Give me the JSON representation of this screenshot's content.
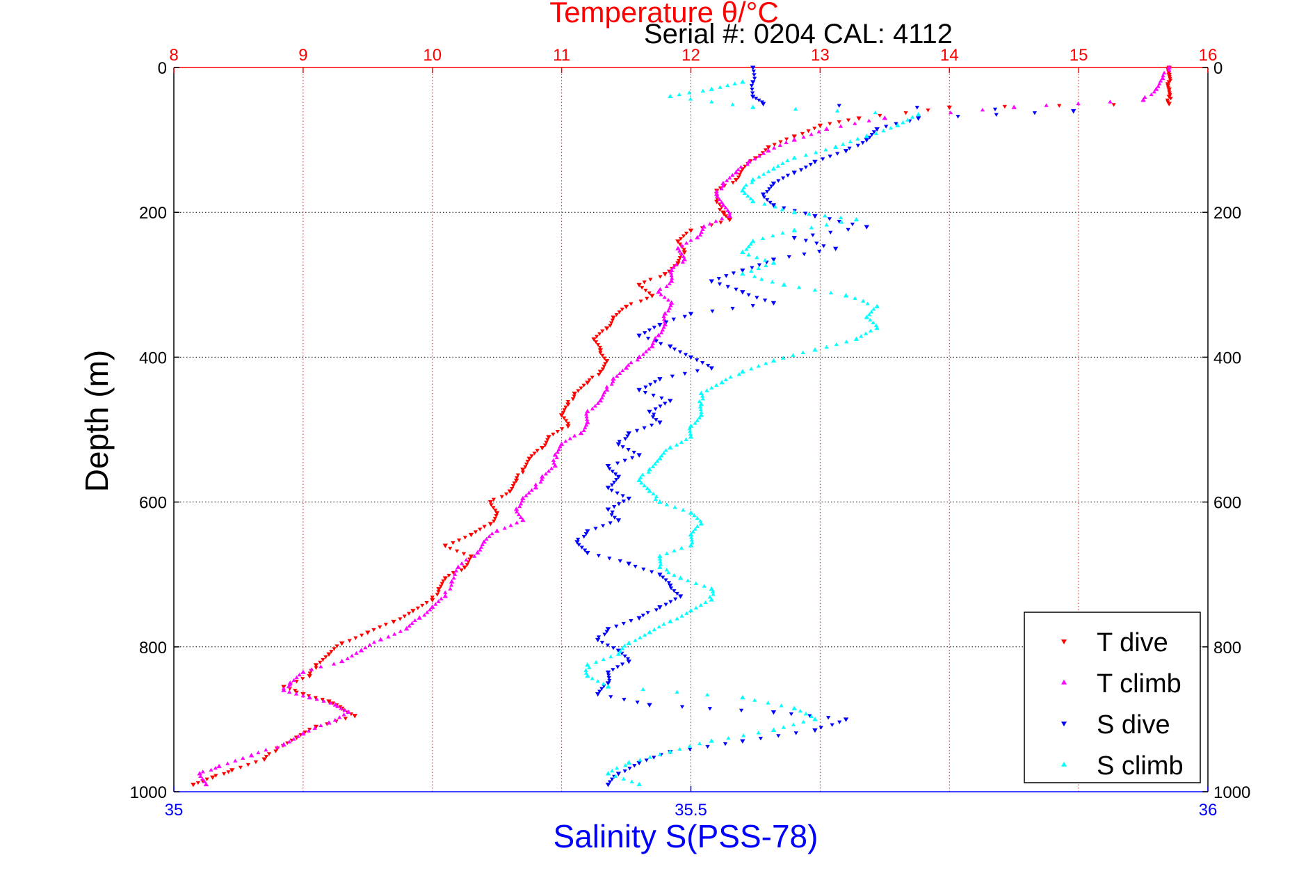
{
  "chart_data": {
    "type": "scatter",
    "title": "Temperature θ/°C",
    "subtitle": "Serial #: 0204  CAL: 4112",
    "ylabel": "Depth (m)",
    "xlabel": "Salinity S(PSS-78)",
    "ylim": [
      1000,
      0
    ],
    "y_ticks": [
      0,
      200,
      400,
      600,
      800,
      1000
    ],
    "x_top": {
      "label": "Temperature θ/°C",
      "range": [
        8,
        16
      ],
      "ticks": [
        "8",
        "9",
        "10",
        "11",
        "12",
        "13",
        "14",
        "15",
        "16"
      ],
      "color": "#ff0000"
    },
    "x_bottom": {
      "label": "Salinity S(PSS-78)",
      "range": [
        35,
        36
      ],
      "ticks": [
        "35",
        "35.5",
        "36"
      ],
      "color": "#0000ff"
    },
    "grid": true,
    "legend_position": "bottom-right",
    "series": [
      {
        "name": "T dive",
        "axis": "temperature",
        "color": "#ff0000",
        "marker": "triangle-down",
        "points": [
          [
            15.7,
            0
          ],
          [
            15.7,
            10
          ],
          [
            15.7,
            20
          ],
          [
            15.7,
            30
          ],
          [
            15.7,
            40
          ],
          [
            15.7,
            50
          ],
          [
            14.0,
            55
          ],
          [
            13.3,
            70
          ],
          [
            13.0,
            80
          ],
          [
            12.8,
            95
          ],
          [
            12.6,
            110
          ],
          [
            12.5,
            125
          ],
          [
            12.4,
            140
          ],
          [
            12.35,
            155
          ],
          [
            12.2,
            170
          ],
          [
            12.2,
            185
          ],
          [
            12.25,
            200
          ],
          [
            12.3,
            210
          ],
          [
            12.0,
            225
          ],
          [
            11.9,
            240
          ],
          [
            11.95,
            255
          ],
          [
            11.9,
            270
          ],
          [
            11.8,
            285
          ],
          [
            11.6,
            300
          ],
          [
            11.7,
            315
          ],
          [
            11.5,
            330
          ],
          [
            11.4,
            345
          ],
          [
            11.35,
            360
          ],
          [
            11.25,
            375
          ],
          [
            11.3,
            390
          ],
          [
            11.35,
            405
          ],
          [
            11.3,
            420
          ],
          [
            11.2,
            435
          ],
          [
            11.1,
            450
          ],
          [
            11.05,
            465
          ],
          [
            11.0,
            480
          ],
          [
            11.05,
            495
          ],
          [
            10.9,
            510
          ],
          [
            10.85,
            525
          ],
          [
            10.75,
            540
          ],
          [
            10.7,
            555
          ],
          [
            10.65,
            570
          ],
          [
            10.6,
            585
          ],
          [
            10.45,
            600
          ],
          [
            10.5,
            615
          ],
          [
            10.45,
            630
          ],
          [
            10.3,
            645
          ],
          [
            10.1,
            660
          ],
          [
            10.3,
            675
          ],
          [
            10.25,
            690
          ],
          [
            10.1,
            705
          ],
          [
            10.05,
            720
          ],
          [
            10.0,
            735
          ],
          [
            9.85,
            750
          ],
          [
            9.7,
            765
          ],
          [
            9.5,
            780
          ],
          [
            9.3,
            795
          ],
          [
            9.2,
            810
          ],
          [
            9.1,
            825
          ],
          [
            9.05,
            840
          ],
          [
            8.85,
            855
          ],
          [
            9.0,
            865
          ],
          [
            9.2,
            875
          ],
          [
            9.3,
            885
          ],
          [
            9.4,
            895
          ],
          [
            9.1,
            910
          ],
          [
            8.95,
            925
          ],
          [
            8.8,
            940
          ],
          [
            8.7,
            955
          ],
          [
            8.45,
            970
          ],
          [
            8.3,
            980
          ],
          [
            8.15,
            990
          ]
        ]
      },
      {
        "name": "T climb",
        "axis": "temperature",
        "color": "#ff00ff",
        "marker": "triangle-up",
        "points": [
          [
            15.7,
            0
          ],
          [
            15.65,
            15
          ],
          [
            15.6,
            30
          ],
          [
            15.5,
            45
          ],
          [
            14.5,
            55
          ],
          [
            13.5,
            70
          ],
          [
            13.05,
            85
          ],
          [
            12.8,
            100
          ],
          [
            12.6,
            115
          ],
          [
            12.45,
            130
          ],
          [
            12.35,
            145
          ],
          [
            12.25,
            160
          ],
          [
            12.2,
            175
          ],
          [
            12.25,
            190
          ],
          [
            12.3,
            205
          ],
          [
            12.1,
            220
          ],
          [
            12.05,
            235
          ],
          [
            11.9,
            250
          ],
          [
            11.95,
            265
          ],
          [
            11.85,
            280
          ],
          [
            11.85,
            295
          ],
          [
            11.75,
            310
          ],
          [
            11.85,
            325
          ],
          [
            11.8,
            340
          ],
          [
            11.8,
            355
          ],
          [
            11.75,
            370
          ],
          [
            11.7,
            385
          ],
          [
            11.6,
            400
          ],
          [
            11.5,
            415
          ],
          [
            11.4,
            430
          ],
          [
            11.35,
            445
          ],
          [
            11.3,
            460
          ],
          [
            11.2,
            475
          ],
          [
            11.2,
            490
          ],
          [
            11.15,
            505
          ],
          [
            11.0,
            520
          ],
          [
            10.95,
            535
          ],
          [
            10.95,
            550
          ],
          [
            10.85,
            565
          ],
          [
            10.8,
            580
          ],
          [
            10.7,
            595
          ],
          [
            10.65,
            610
          ],
          [
            10.7,
            625
          ],
          [
            10.5,
            640
          ],
          [
            10.4,
            655
          ],
          [
            10.35,
            670
          ],
          [
            10.2,
            690
          ],
          [
            10.15,
            710
          ],
          [
            10.1,
            730
          ],
          [
            10.0,
            745
          ],
          [
            9.9,
            760
          ],
          [
            9.8,
            775
          ],
          [
            9.6,
            790
          ],
          [
            9.45,
            805
          ],
          [
            9.3,
            820
          ],
          [
            9.0,
            835
          ],
          [
            8.9,
            850
          ],
          [
            8.85,
            860
          ],
          [
            9.05,
            870
          ],
          [
            9.25,
            880
          ],
          [
            9.35,
            890
          ],
          [
            9.2,
            905
          ],
          [
            9.0,
            920
          ],
          [
            8.85,
            935
          ],
          [
            8.6,
            950
          ],
          [
            8.35,
            965
          ],
          [
            8.2,
            975
          ],
          [
            8.25,
            990
          ]
        ]
      },
      {
        "name": "S dive",
        "axis": "salinity",
        "color": "#0000ff",
        "marker": "triangle-down",
        "points": [
          [
            35.56,
            0
          ],
          [
            35.56,
            20
          ],
          [
            35.56,
            40
          ],
          [
            35.57,
            50
          ],
          [
            35.87,
            60
          ],
          [
            35.72,
            70
          ],
          [
            35.68,
            85
          ],
          [
            35.67,
            100
          ],
          [
            35.65,
            115
          ],
          [
            35.62,
            130
          ],
          [
            35.6,
            145
          ],
          [
            35.58,
            160
          ],
          [
            35.57,
            175
          ],
          [
            35.58,
            190
          ],
          [
            35.62,
            205
          ],
          [
            35.67,
            220
          ],
          [
            35.6,
            235
          ],
          [
            35.64,
            250
          ],
          [
            35.58,
            265
          ],
          [
            35.55,
            280
          ],
          [
            35.52,
            295
          ],
          [
            35.55,
            310
          ],
          [
            35.58,
            325
          ],
          [
            35.5,
            340
          ],
          [
            35.47,
            355
          ],
          [
            35.45,
            370
          ],
          [
            35.48,
            385
          ],
          [
            35.5,
            400
          ],
          [
            35.52,
            415
          ],
          [
            35.47,
            430
          ],
          [
            35.45,
            445
          ],
          [
            35.48,
            460
          ],
          [
            35.46,
            475
          ],
          [
            35.47,
            490
          ],
          [
            35.44,
            505
          ],
          [
            35.43,
            520
          ],
          [
            35.45,
            535
          ],
          [
            35.42,
            550
          ],
          [
            35.43,
            565
          ],
          [
            35.42,
            580
          ],
          [
            35.44,
            595
          ],
          [
            35.42,
            610
          ],
          [
            35.43,
            625
          ],
          [
            35.4,
            640
          ],
          [
            35.39,
            655
          ],
          [
            35.4,
            670
          ],
          [
            35.44,
            685
          ],
          [
            35.47,
            700
          ],
          [
            35.48,
            715
          ],
          [
            35.49,
            730
          ],
          [
            35.47,
            745
          ],
          [
            35.45,
            760
          ],
          [
            35.42,
            775
          ],
          [
            35.41,
            790
          ],
          [
            35.43,
            805
          ],
          [
            35.44,
            820
          ],
          [
            35.42,
            835
          ],
          [
            35.42,
            850
          ],
          [
            35.41,
            865
          ],
          [
            35.46,
            880
          ],
          [
            35.58,
            890
          ],
          [
            35.65,
            900
          ],
          [
            35.62,
            915
          ],
          [
            35.55,
            930
          ],
          [
            35.48,
            945
          ],
          [
            35.45,
            960
          ],
          [
            35.43,
            975
          ],
          [
            35.42,
            990
          ]
        ]
      },
      {
        "name": "S climb",
        "axis": "salinity",
        "color": "#00ffff",
        "marker": "triangle-up",
        "points": [
          [
            35.55,
            20
          ],
          [
            35.52,
            30
          ],
          [
            35.48,
            40
          ],
          [
            35.56,
            55
          ],
          [
            35.72,
            65
          ],
          [
            35.7,
            80
          ],
          [
            35.67,
            95
          ],
          [
            35.64,
            110
          ],
          [
            35.6,
            125
          ],
          [
            35.58,
            140
          ],
          [
            35.56,
            155
          ],
          [
            35.55,
            170
          ],
          [
            35.56,
            185
          ],
          [
            35.6,
            200
          ],
          [
            35.66,
            210
          ],
          [
            35.6,
            225
          ],
          [
            35.56,
            240
          ],
          [
            35.55,
            255
          ],
          [
            35.58,
            270
          ],
          [
            35.55,
            285
          ],
          [
            35.59,
            300
          ],
          [
            35.65,
            315
          ],
          [
            35.68,
            330
          ],
          [
            35.67,
            345
          ],
          [
            35.68,
            360
          ],
          [
            35.66,
            375
          ],
          [
            35.62,
            390
          ],
          [
            35.58,
            405
          ],
          [
            35.55,
            420
          ],
          [
            35.53,
            435
          ],
          [
            35.51,
            450
          ],
          [
            35.51,
            465
          ],
          [
            35.51,
            480
          ],
          [
            35.5,
            495
          ],
          [
            35.5,
            510
          ],
          [
            35.48,
            525
          ],
          [
            35.47,
            540
          ],
          [
            35.46,
            555
          ],
          [
            35.45,
            570
          ],
          [
            35.46,
            585
          ],
          [
            35.47,
            600
          ],
          [
            35.5,
            615
          ],
          [
            35.51,
            630
          ],
          [
            35.5,
            645
          ],
          [
            35.5,
            660
          ],
          [
            35.47,
            675
          ],
          [
            35.47,
            690
          ],
          [
            35.49,
            705
          ],
          [
            35.52,
            720
          ],
          [
            35.52,
            735
          ],
          [
            35.5,
            750
          ],
          [
            35.48,
            765
          ],
          [
            35.46,
            780
          ],
          [
            35.44,
            795
          ],
          [
            35.43,
            810
          ],
          [
            35.4,
            825
          ],
          [
            35.4,
            840
          ],
          [
            35.42,
            855
          ],
          [
            35.55,
            870
          ],
          [
            35.6,
            885
          ],
          [
            35.62,
            900
          ],
          [
            35.58,
            915
          ],
          [
            35.52,
            930
          ],
          [
            35.48,
            945
          ],
          [
            35.44,
            960
          ],
          [
            35.42,
            975
          ],
          [
            35.45,
            990
          ]
        ]
      }
    ]
  },
  "colors": {
    "temperature_axis": "#ff0000",
    "salinity_axis": "#0000ff",
    "depth_axis": "#000000",
    "grid_major": "#000000",
    "grid_temperature": "#ff0000"
  }
}
